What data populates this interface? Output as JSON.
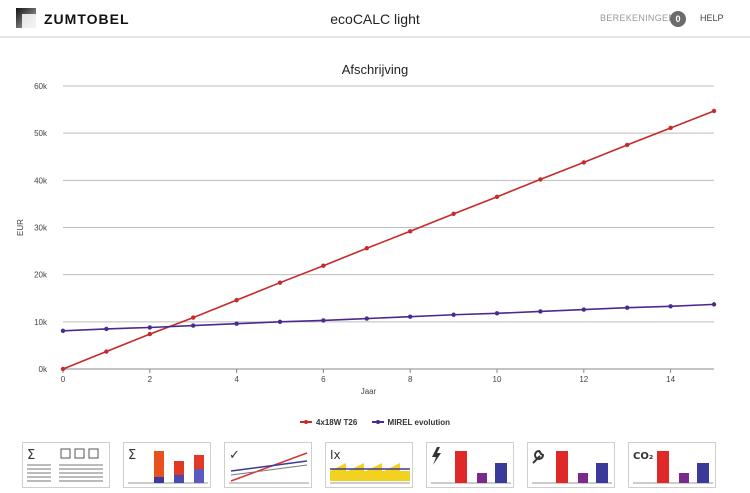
{
  "header": {
    "brand": "ZUMTOBEL",
    "app_title": "ecoCALC light",
    "calculations_label": "BEREKENINGEN",
    "calculations_count": "0",
    "help_label": "HELP"
  },
  "toolbar": {
    "tools": [
      {
        "name": "summary-table-tool",
        "icon": "sigma-table-icon"
      },
      {
        "name": "summary-bars-tool",
        "icon": "sigma-bars-icon"
      },
      {
        "name": "comparison-lines-tool",
        "icon": "check-lines-icon"
      },
      {
        "name": "interest-tool",
        "icon": "ix-area-icon"
      },
      {
        "name": "energy-tool",
        "icon": "lightning-bars-icon"
      },
      {
        "name": "maintenance-tool",
        "icon": "wrench-bars-icon"
      },
      {
        "name": "co2-tool",
        "icon": "co2-bars-icon",
        "label": "CO₂"
      }
    ]
  },
  "chart_data": {
    "type": "line",
    "title": "Afschrijving",
    "xlabel": "Jaar",
    "ylabel": "EUR",
    "xlim": [
      0,
      15
    ],
    "ylim": [
      0,
      60000
    ],
    "x_ticks": [
      "0",
      "2",
      "4",
      "6",
      "8",
      "10",
      "12",
      "14"
    ],
    "y_ticks": [
      "0k",
      "10k",
      "20k",
      "30k",
      "40k",
      "50k",
      "60k"
    ],
    "grid": true,
    "legend_position": "bottom",
    "x": [
      0,
      1,
      2,
      3,
      4,
      5,
      6,
      7,
      8,
      9,
      10,
      11,
      12,
      13,
      14,
      15
    ],
    "series": [
      {
        "name": "4x18W T26",
        "color": "#c62a2a",
        "values": [
          0,
          3700,
          7400,
          10900,
          14600,
          18300,
          21900,
          25600,
          29200,
          32900,
          36500,
          40200,
          43800,
          47500,
          51100,
          54700
        ]
      },
      {
        "name": "MIREL evolution",
        "color": "#4b2a8c",
        "values": [
          8100,
          8500,
          8800,
          9200,
          9600,
          10000,
          10300,
          10700,
          11100,
          11500,
          11800,
          12200,
          12600,
          13000,
          13300,
          13700
        ]
      }
    ]
  }
}
